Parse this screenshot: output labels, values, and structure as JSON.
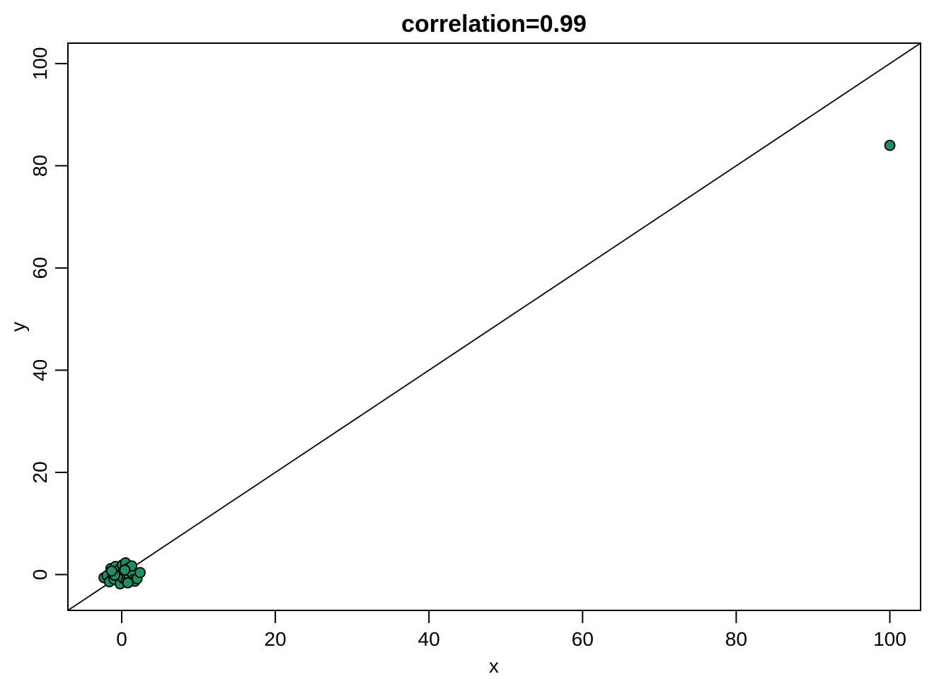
{
  "chart_data": {
    "type": "scatter",
    "title": "correlation=0.99",
    "xlabel": "x",
    "ylabel": "y",
    "xlim": [
      -7,
      104
    ],
    "ylim": [
      -7,
      104
    ],
    "xticks": [
      0,
      20,
      40,
      60,
      80,
      100
    ],
    "yticks": [
      0,
      20,
      40,
      60,
      80,
      100
    ],
    "grid": false,
    "reference_line": {
      "slope": 1,
      "intercept": 0
    },
    "series": [
      {
        "color": "#1f8f63",
        "edge_color": "#000000",
        "points": [
          {
            "x": -2.3,
            "y": -0.6
          },
          {
            "x": -1.9,
            "y": -0.2
          },
          {
            "x": -1.6,
            "y": -1.4
          },
          {
            "x": -1.4,
            "y": 1.2
          },
          {
            "x": -1.2,
            "y": 0.3
          },
          {
            "x": -1.0,
            "y": -0.9
          },
          {
            "x": -0.8,
            "y": 1.6
          },
          {
            "x": -0.6,
            "y": 0.6
          },
          {
            "x": -0.5,
            "y": -0.3
          },
          {
            "x": -0.3,
            "y": 1.0
          },
          {
            "x": -0.2,
            "y": -1.8
          },
          {
            "x": 0.0,
            "y": 0.2
          },
          {
            "x": 0.1,
            "y": 1.9
          },
          {
            "x": 0.2,
            "y": -0.7
          },
          {
            "x": 0.3,
            "y": 0.8
          },
          {
            "x": 0.5,
            "y": 2.3
          },
          {
            "x": 0.6,
            "y": -1.2
          },
          {
            "x": 0.7,
            "y": 0.0
          },
          {
            "x": 0.9,
            "y": 1.3
          },
          {
            "x": 1.0,
            "y": -0.4
          },
          {
            "x": 1.2,
            "y": 0.5
          },
          {
            "x": 1.3,
            "y": 1.7
          },
          {
            "x": 1.5,
            "y": -1.0
          },
          {
            "x": 1.7,
            "y": -1.3
          },
          {
            "x": 2.0,
            "y": -0.8
          },
          {
            "x": 2.4,
            "y": 0.4
          },
          {
            "x": -0.9,
            "y": -0.1
          },
          {
            "x": 0.4,
            "y": 0.9
          },
          {
            "x": -1.3,
            "y": 0.7
          },
          {
            "x": 0.8,
            "y": -1.6
          },
          {
            "x": 100.0,
            "y": 84.0
          }
        ]
      }
    ]
  }
}
